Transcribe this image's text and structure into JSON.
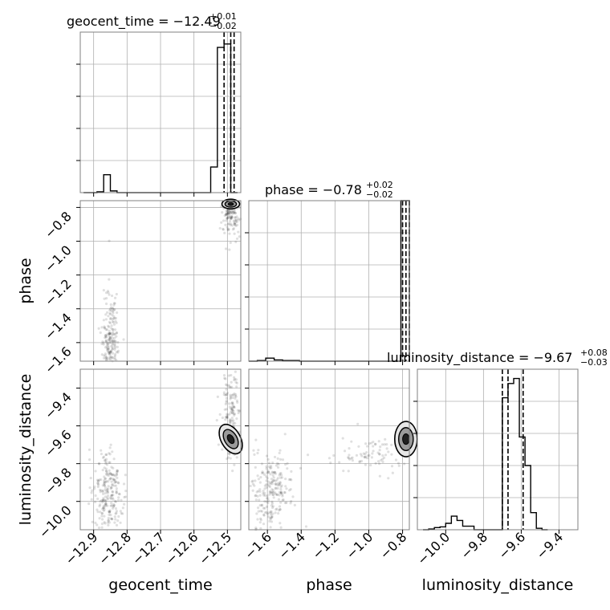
{
  "chart_data": {
    "type": "corner",
    "parameters": [
      "geocent_time",
      "phase",
      "luminosity_distance"
    ],
    "titles": [
      {
        "param": "geocent_time",
        "text": "geocent_time = −12.49",
        "sup": "+0.01",
        "sub": "−0.02"
      },
      {
        "param": "phase",
        "text": "phase = −0.78",
        "sup": "+0.02",
        "sub": "−0.02"
      },
      {
        "param": "luminosity_distance",
        "text": "luminosity_distance = −9.67",
        "sup": "+0.08",
        "sub": "−0.03"
      }
    ],
    "axis_labels": {
      "x": [
        "geocent_time",
        "phase",
        "luminosity_distance"
      ],
      "y": [
        "phase",
        "luminosity_distance"
      ]
    },
    "ranges": {
      "geocent_time": [
        -12.94,
        -12.46
      ],
      "phase": [
        -1.71,
        -0.76
      ],
      "luminosity_distance": [
        -10.15,
        -9.3
      ]
    },
    "ticks": {
      "geocent_time": [
        "−12.9",
        "−12.8",
        "−12.7",
        "−12.6",
        "−12.5"
      ],
      "phase": [
        "−1.6",
        "−1.4",
        "−1.2",
        "−1.0",
        "−0.8"
      ],
      "luminosity_distance": [
        "−10.0",
        "−9.8",
        "−9.6",
        "−9.4"
      ]
    },
    "tick_values": {
      "geocent_time": [
        -12.9,
        -12.8,
        -12.7,
        -12.6,
        -12.5
      ],
      "phase": [
        -1.6,
        -1.4,
        -1.2,
        -1.0,
        -0.8
      ],
      "luminosity_distance": [
        -10.0,
        -9.8,
        -9.6,
        -9.4
      ]
    },
    "grid": true,
    "quantiles": {
      "geocent_time": [
        -12.51,
        -12.49,
        -12.48
      ],
      "phase": [
        -0.8,
        -0.78,
        -0.76
      ],
      "luminosity_distance": [
        -9.7,
        -9.67,
        -9.59
      ]
    },
    "histograms": {
      "geocent_time": {
        "bins": [
          -12.93,
          -12.91,
          -12.89,
          -12.87,
          -12.85,
          -12.83,
          -12.81,
          -12.79,
          -12.77,
          -12.75,
          -12.73,
          -12.71,
          -12.69,
          -12.67,
          -12.65,
          -12.63,
          -12.61,
          -12.59,
          -12.57,
          -12.55,
          -12.53,
          -12.51,
          -12.49,
          -12.47
        ],
        "counts": [
          0,
          0,
          1,
          21,
          2,
          0,
          0,
          0,
          0,
          0,
          0,
          0,
          0,
          0,
          0,
          0,
          0,
          0,
          0,
          30,
          170,
          174,
          0
        ]
      },
      "phase": {
        "bins": [
          -1.71,
          -1.66,
          -1.61,
          -1.56,
          -1.51,
          -1.46,
          -1.41,
          -1.36,
          -1.31,
          -1.26,
          -1.21,
          -1.16,
          -1.11,
          -1.06,
          -1.01,
          -0.96,
          -0.91,
          -0.86,
          -0.81,
          -0.76
        ],
        "counts": [
          0,
          1,
          5,
          2,
          1,
          1,
          0,
          0,
          0,
          0,
          0,
          0,
          0,
          0,
          0,
          0,
          0,
          0,
          260
        ],
        "max": 260
      },
      "luminosity_distance": {
        "bins": [
          -10.12,
          -10.09,
          -10.06,
          -10.03,
          -10.0,
          -9.97,
          -9.94,
          -9.91,
          -9.88,
          -9.85,
          -9.82,
          -9.79,
          -9.76,
          -9.73,
          -9.7,
          -9.67,
          -9.64,
          -9.61,
          -9.58,
          -9.55,
          -9.52,
          -9.49,
          -9.46
        ],
        "counts": [
          0,
          1,
          3,
          4,
          9,
          19,
          13,
          5,
          5,
          0,
          0,
          0,
          0,
          0,
          185,
          205,
          212,
          130,
          90,
          24,
          2,
          0
        ],
        "max": 225
      }
    }
  }
}
